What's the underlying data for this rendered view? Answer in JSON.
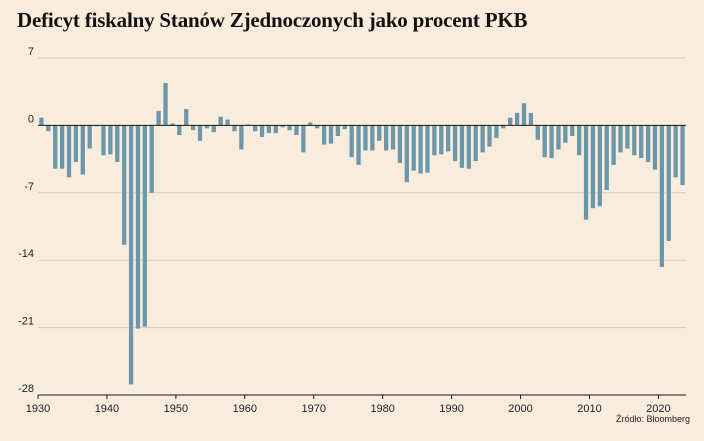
{
  "chart_data": {
    "type": "bar",
    "title": "Deficyt fiskalny Stanów Zjednoczonych jako procent PKB",
    "xlabel": "",
    "ylabel": "",
    "ylim": [
      -28,
      7
    ],
    "yticks": [
      "7",
      "0",
      "-7",
      "-14",
      "-21",
      "-28"
    ],
    "ytick_values": [
      7,
      0,
      -7,
      -14,
      -21,
      -28
    ],
    "xticks": [
      "1930",
      "1940",
      "1950",
      "1960",
      "1970",
      "1980",
      "1990",
      "2000",
      "2010",
      "2020"
    ],
    "xtick_values": [
      1930,
      1940,
      1950,
      1960,
      1970,
      1980,
      1990,
      2000,
      2010,
      2020
    ],
    "xlim": [
      1930,
      2023
    ],
    "grid_horizontal": true,
    "bar_color": "#6c97aa",
    "x": [
      1930,
      1931,
      1932,
      1933,
      1934,
      1935,
      1936,
      1937,
      1938,
      1939,
      1940,
      1941,
      1942,
      1943,
      1944,
      1945,
      1946,
      1947,
      1948,
      1949,
      1950,
      1951,
      1952,
      1953,
      1954,
      1955,
      1956,
      1957,
      1958,
      1959,
      1960,
      1961,
      1962,
      1963,
      1964,
      1965,
      1966,
      1967,
      1968,
      1969,
      1970,
      1971,
      1972,
      1973,
      1974,
      1975,
      1976,
      1977,
      1978,
      1979,
      1980,
      1981,
      1982,
      1983,
      1984,
      1985,
      1986,
      1987,
      1988,
      1989,
      1990,
      1991,
      1992,
      1993,
      1994,
      1995,
      1996,
      1997,
      1998,
      1999,
      2000,
      2001,
      2002,
      2003,
      2004,
      2005,
      2006,
      2007,
      2008,
      2009,
      2010,
      2011,
      2012,
      2013,
      2014,
      2015,
      2016,
      2017,
      2018,
      2019,
      2020,
      2021,
      2022,
      2023
    ],
    "values": [
      0.8,
      -0.6,
      -4.5,
      -4.5,
      -5.4,
      -3.8,
      -5.1,
      -2.4,
      -0.1,
      -3.1,
      -3.0,
      -3.8,
      -12.4,
      -26.9,
      -21.1,
      -20.9,
      -7.0,
      1.5,
      4.4,
      0.2,
      -1.0,
      1.7,
      -0.5,
      -1.6,
      -0.3,
      -0.7,
      0.9,
      0.6,
      -0.6,
      -2.5,
      0.1,
      -0.6,
      -1.2,
      -0.8,
      -0.8,
      -0.2,
      -0.5,
      -1.0,
      -2.8,
      0.3,
      -0.3,
      -2.0,
      -1.9,
      -1.1,
      -0.4,
      -3.3,
      -4.1,
      -2.6,
      -2.6,
      -1.6,
      -2.6,
      -2.5,
      -3.9,
      -5.9,
      -4.7,
      -5.0,
      -4.9,
      -3.1,
      -3.0,
      -2.7,
      -3.7,
      -4.4,
      -4.5,
      -3.7,
      -2.8,
      -2.2,
      -1.3,
      -0.3,
      0.8,
      1.3,
      2.3,
      1.3,
      -1.5,
      -3.3,
      -3.4,
      -2.5,
      -1.8,
      -1.1,
      -3.1,
      -9.8,
      -8.6,
      -8.4,
      -6.7,
      -4.1,
      -2.8,
      -2.4,
      -3.1,
      -3.4,
      -3.8,
      -4.6,
      -14.7,
      -12.0,
      -5.4,
      -6.2
    ]
  },
  "source": "Źródło: Bloomberg"
}
